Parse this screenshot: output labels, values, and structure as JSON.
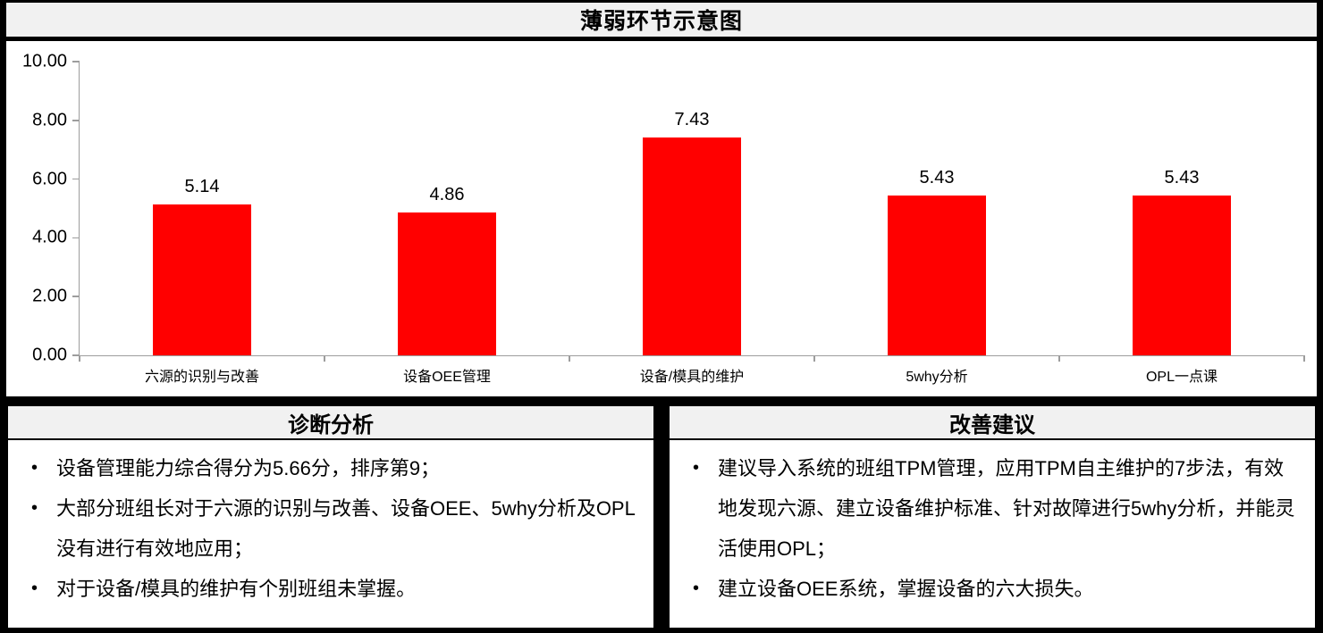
{
  "title": "薄弱环节示意图",
  "chart_data": {
    "type": "bar",
    "categories": [
      "六源的识别与改善",
      "设备OEE管理",
      "设备/模具的维护",
      "5why分析",
      "OPL一点课"
    ],
    "values": [
      5.14,
      4.86,
      7.43,
      5.43,
      5.43
    ],
    "value_labels": [
      "5.14",
      "4.86",
      "7.43",
      "5.43",
      "5.43"
    ],
    "title": "薄弱环节示意图",
    "xlabel": "",
    "ylabel": "",
    "ylim": [
      0,
      10
    ],
    "yticks": [
      0,
      2,
      4,
      6,
      8,
      10
    ],
    "ytick_labels": [
      "0.00",
      "2.00",
      "4.00",
      "6.00",
      "8.00",
      "10.00"
    ],
    "bar_color": "#FF0000",
    "grid": false,
    "legend": false
  },
  "panels": {
    "diagnosis": {
      "header": "诊断分析",
      "bullets": [
        "设备管理能力综合得分为5.66分，排序第9；",
        "大部分班组长对于六源的识别与改善、设备OEE、5why分析及OPL没有进行有效地应用；",
        "对于设备/模具的维护有个别班组未掌握。"
      ]
    },
    "improvement": {
      "header": "改善建议",
      "bullets": [
        "建议导入系统的班组TPM管理，应用TPM自主维护的7步法，有效地发现六源、建立设备维护标准、针对故障进行5why分析，并能灵活使用OPL；",
        "建立设备OEE系统，掌握设备的六大损失。"
      ]
    }
  },
  "colors": {
    "bar": "#FF0000",
    "header_bg": "#F1F1F1",
    "axis_line": "#9D9D9D",
    "frame": "#000000"
  }
}
